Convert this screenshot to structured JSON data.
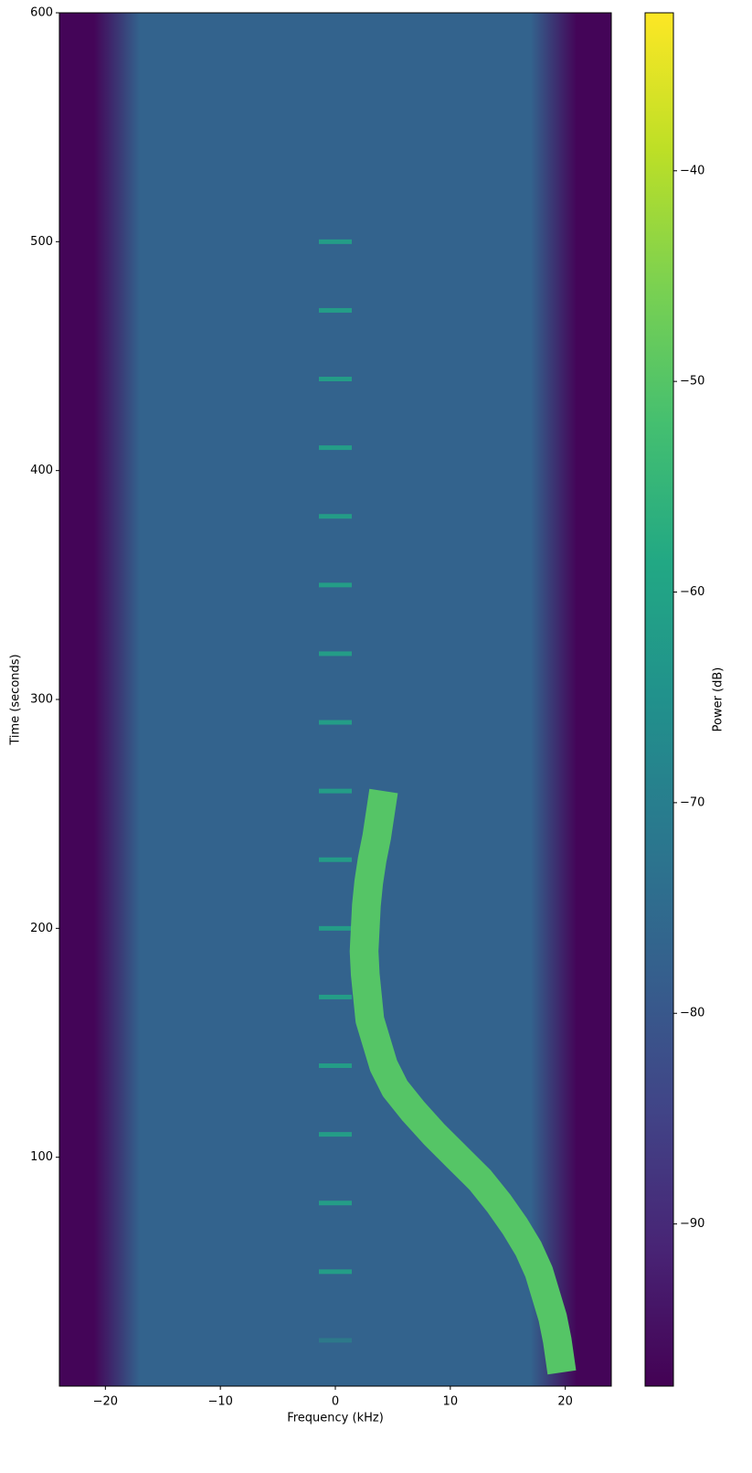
{
  "chart_data": {
    "type": "spectrogram",
    "x_label": "Frequency (kHz)",
    "y_label": "Time (seconds)",
    "colorbar_label": "Power (dB)",
    "colormap": "viridis",
    "xlim": [
      -24,
      24
    ],
    "xticks": [
      {
        "value": -20,
        "label": "−20"
      },
      {
        "value": -10,
        "label": "−10"
      },
      0,
      10,
      20
    ],
    "ylim": [
      0,
      600
    ],
    "yticks": [
      100,
      200,
      300,
      400,
      500,
      600
    ],
    "clim": [
      -97.7,
      -32.5
    ],
    "cticks": [
      {
        "value": -40,
        "label": "−40"
      },
      {
        "value": -50,
        "label": "−50"
      },
      {
        "value": -60,
        "label": "−60"
      },
      {
        "value": -70,
        "label": "−70"
      },
      {
        "value": -80,
        "label": "−80"
      },
      {
        "value": -90,
        "label": "−90"
      }
    ],
    "background": {
      "noise_level": -77,
      "edge_level": -97,
      "rolloff_frequency": [
        -21,
        -17,
        17,
        21
      ]
    },
    "pulses": {
      "frequency": 0,
      "level": -60,
      "time": [
        20,
        50,
        80,
        110,
        140,
        170,
        200,
        230,
        260,
        290,
        320,
        350,
        380,
        410,
        440,
        470,
        500
      ]
    },
    "trace": {
      "level": -50,
      "width": 2.5,
      "time": [
        6,
        20,
        30,
        40,
        50,
        60,
        70,
        80,
        90,
        100,
        110,
        120,
        130,
        140,
        150,
        160,
        170,
        180,
        190,
        200,
        210,
        220,
        230,
        240,
        250,
        260
      ],
      "frequency": [
        19.7,
        19.3,
        18.9,
        18.3,
        17.7,
        16.8,
        15.6,
        14.2,
        12.6,
        10.6,
        8.6,
        6.8,
        5.2,
        4.2,
        3.6,
        3.0,
        2.8,
        2.6,
        2.5,
        2.6,
        2.7,
        2.9,
        3.2,
        3.6,
        3.9,
        4.2
      ]
    }
  }
}
